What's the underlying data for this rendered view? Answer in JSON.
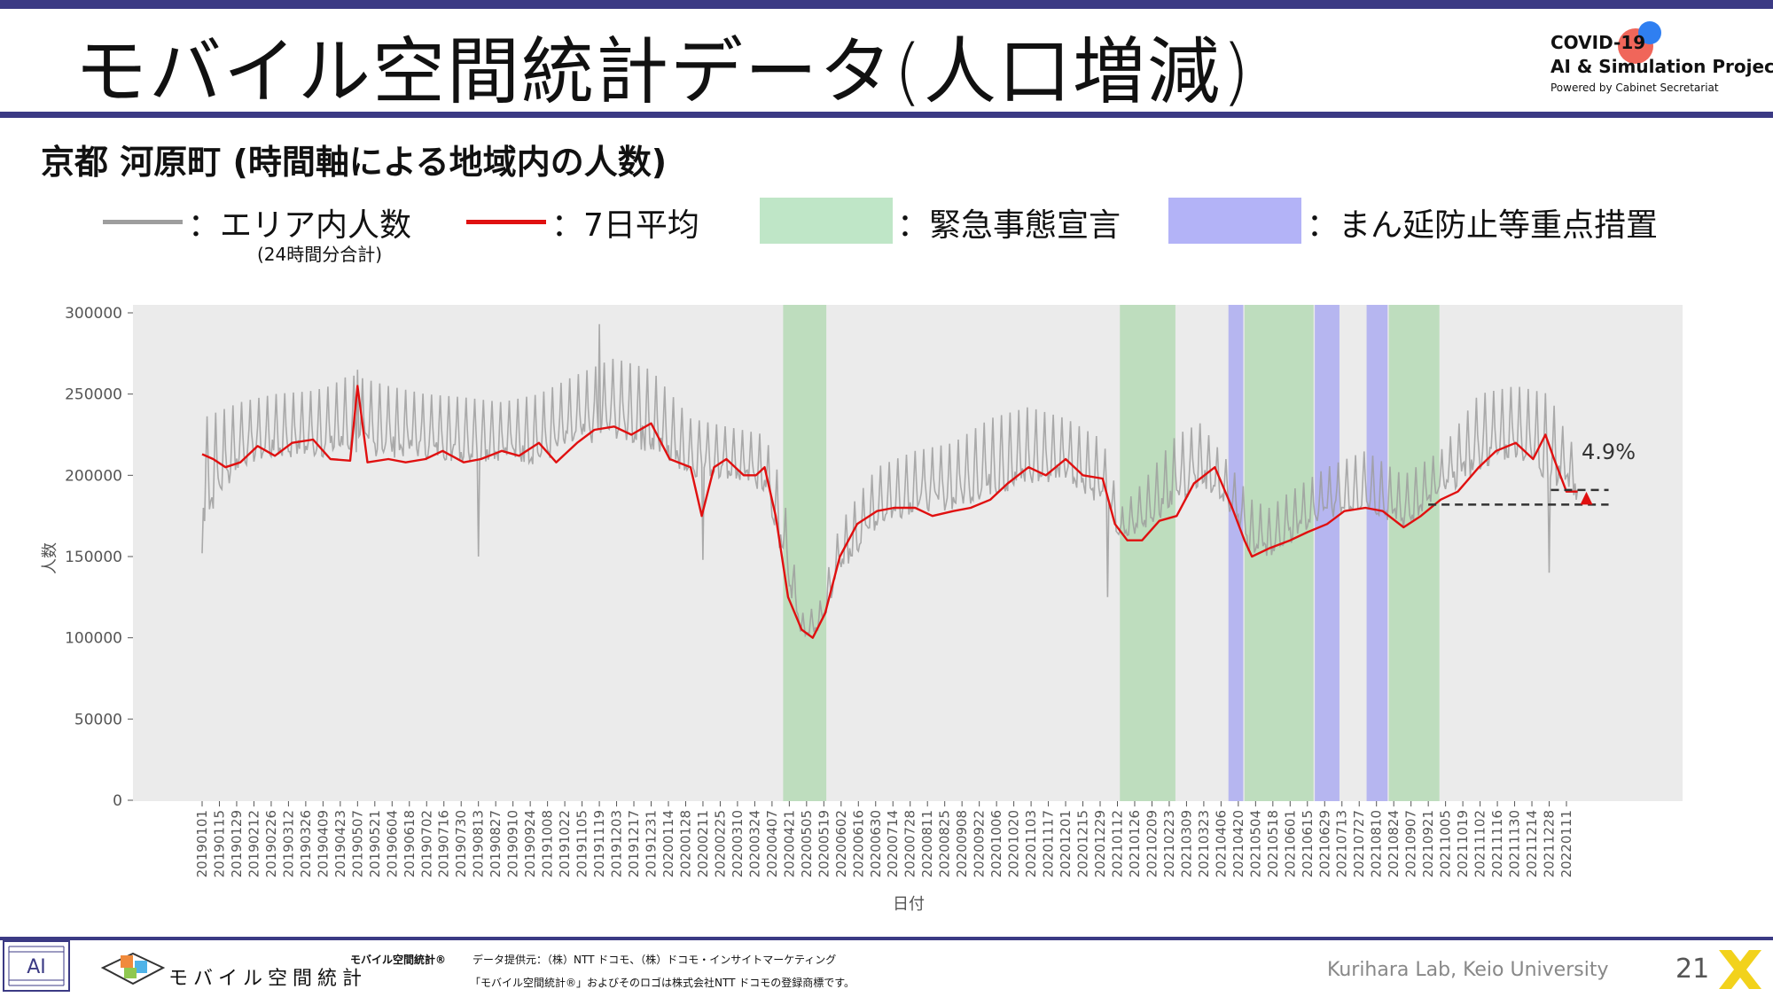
{
  "header": {
    "title": "モバイル空間統計データ(人口増減)",
    "logo_line1": "COVID-19",
    "logo_line2": "AI & Simulation Project",
    "logo_line3": "Powered by Cabinet Secretariat"
  },
  "subtitle": "京都 河原町 (時間軸による地域内の人数)",
  "legend": {
    "area_label": "：エリア内人数",
    "area_sub": "(24時間分合計)",
    "avg_label": "：7日平均",
    "emergency_label": "：緊急事態宣言",
    "priority_label": "：まん延防止等重点措置"
  },
  "colors": {
    "raw_line": "#9e9e9e",
    "avg_line": "#e01010",
    "emergency": "#b9dcb9",
    "priority": "#b3b3f0",
    "plot_bg": "#ebebeb",
    "brand": "#3b3a84"
  },
  "chart_data": {
    "type": "line",
    "title": "",
    "xlabel": "日付",
    "ylabel": "人数",
    "ylim": [
      0,
      300000
    ],
    "yticks": [
      "0",
      "50000",
      "100000",
      "150000",
      "200000",
      "250000",
      "300000"
    ],
    "grid": false,
    "xticks": [
      "20190101",
      "20190115",
      "20190129",
      "20190212",
      "20190226",
      "20190312",
      "20190326",
      "20190409",
      "20190423",
      "20190507",
      "20190521",
      "20190604",
      "20190618",
      "20190702",
      "20190716",
      "20190730",
      "20190813",
      "20190827",
      "20190910",
      "20190924",
      "20191008",
      "20191022",
      "20191105",
      "20191119",
      "20191203",
      "20191217",
      "20191231",
      "20200114",
      "20200128",
      "20200211",
      "20200225",
      "20200310",
      "20200324",
      "20200407",
      "20200421",
      "20200505",
      "20200519",
      "20200602",
      "20200616",
      "20200630",
      "20200714",
      "20200728",
      "20200811",
      "20200825",
      "20200908",
      "20200922",
      "20201006",
      "20201020",
      "20201103",
      "20201117",
      "20201201",
      "20201215",
      "20201229",
      "20210112",
      "20210126",
      "20210209",
      "20210223",
      "20210309",
      "20210323",
      "20210406",
      "20210420",
      "20210504",
      "20210518",
      "20210601",
      "20210615",
      "20210629",
      "20210713",
      "20210727",
      "20210810",
      "20210824",
      "20210907",
      "20210921",
      "20211005",
      "20211019",
      "20211102",
      "20211116",
      "20211130",
      "20211214",
      "20211228",
      "20220111"
    ],
    "emergency_periods": [
      [
        "20200416",
        "20200521"
      ],
      [
        "20210114",
        "20210228"
      ],
      [
        "20210425",
        "20210620"
      ],
      [
        "20210820",
        "20210930"
      ]
    ],
    "priority_periods": [
      [
        "20210412",
        "20210424"
      ],
      [
        "20210621",
        "20210711"
      ],
      [
        "20210802",
        "20210819"
      ]
    ],
    "series": [
      {
        "name": "エリア内人数",
        "style": "raw",
        "x": [
          "20190101",
          "20190201",
          "20190301",
          "20190401",
          "20190415",
          "20190501",
          "20190601",
          "20190701",
          "20190801",
          "20190901",
          "20191001",
          "20191101",
          "20191201",
          "20191231",
          "20200201",
          "20200301",
          "20200401",
          "20200415",
          "20200501",
          "20200515",
          "20200601",
          "20200701",
          "20200801",
          "20200901",
          "20201001",
          "20201101",
          "20201201",
          "20201231",
          "20210115",
          "20210201",
          "20210301",
          "20210320",
          "20210410",
          "20210501",
          "20210515",
          "20210601",
          "20210701",
          "20210801",
          "20210901",
          "20211001",
          "20211101",
          "20211201",
          "20211228",
          "20220111",
          "20220120"
        ],
        "min": [
          150000,
          195000,
          200000,
          200000,
          200000,
          200000,
          200000,
          200000,
          198000,
          200000,
          195000,
          205000,
          210000,
          200000,
          190000,
          190000,
          180000,
          135000,
          95000,
          98000,
          130000,
          158000,
          168000,
          168000,
          175000,
          178000,
          188000,
          170000,
          152000,
          158000,
          170000,
          185000,
          175000,
          140000,
          140000,
          150000,
          165000,
          170000,
          158000,
          178000,
          190000,
          200000,
          180000,
          185000,
          175000
        ],
        "max": [
          235000,
          245000,
          250000,
          252000,
          255000,
          262000,
          255000,
          250000,
          248000,
          245000,
          250000,
          262000,
          272000,
          265000,
          235000,
          230000,
          225000,
          195000,
          115000,
          120000,
          170000,
          205000,
          215000,
          220000,
          235000,
          242000,
          235000,
          222000,
          180000,
          195000,
          225000,
          232000,
          210000,
          185000,
          180000,
          190000,
          205000,
          215000,
          200000,
          215000,
          250000,
          255000,
          250000,
          225000,
          215000
        ],
        "spikes": [
          [
            "20190101",
            152000
          ],
          [
            "20190507",
            265000
          ],
          [
            "20190813",
            150000
          ],
          [
            "20191119",
            293000
          ],
          [
            "20200211",
            148000
          ],
          [
            "20210104",
            125000
          ],
          [
            "20211228",
            140000
          ],
          [
            "20210920",
            185000
          ]
        ]
      },
      {
        "name": "7日平均",
        "style": "avg",
        "x": [
          "20190101",
          "20190110",
          "20190120",
          "20190201",
          "20190215",
          "20190301",
          "20190315",
          "20190401",
          "20190415",
          "20190501",
          "20190507",
          "20190515",
          "20190601",
          "20190615",
          "20190701",
          "20190715",
          "20190801",
          "20190815",
          "20190901",
          "20190915",
          "20191001",
          "20191015",
          "20191101",
          "20191115",
          "20191201",
          "20191215",
          "20191231",
          "20200115",
          "20200201",
          "20200210",
          "20200220",
          "20200301",
          "20200315",
          "20200325",
          "20200401",
          "20200410",
          "20200420",
          "20200501",
          "20200510",
          "20200520",
          "20200601",
          "20200615",
          "20200701",
          "20200715",
          "20200801",
          "20200815",
          "20200901",
          "20200915",
          "20201001",
          "20201015",
          "20201101",
          "20201115",
          "20201201",
          "20201215",
          "20201231",
          "20210110",
          "20210120",
          "20210201",
          "20210215",
          "20210301",
          "20210315",
          "20210401",
          "20210415",
          "20210425",
          "20210501",
          "20210515",
          "20210601",
          "20210615",
          "20210701",
          "20210715",
          "20210801",
          "20210815",
          "20210901",
          "20210915",
          "20211001",
          "20211015",
          "20211101",
          "20211115",
          "20211201",
          "20211215",
          "20211225",
          "20220101",
          "20220111",
          "20220120"
        ],
        "values": [
          213000,
          210000,
          205000,
          208000,
          218000,
          212000,
          220000,
          222000,
          210000,
          209000,
          255000,
          208000,
          210000,
          208000,
          210000,
          215000,
          208000,
          210000,
          215000,
          212000,
          220000,
          208000,
          220000,
          228000,
          230000,
          225000,
          232000,
          210000,
          205000,
          175000,
          205000,
          210000,
          200000,
          200000,
          205000,
          175000,
          125000,
          105000,
          100000,
          115000,
          150000,
          170000,
          178000,
          180000,
          180000,
          175000,
          178000,
          180000,
          185000,
          195000,
          205000,
          200000,
          210000,
          200000,
          198000,
          170000,
          160000,
          160000,
          172000,
          175000,
          195000,
          205000,
          180000,
          160000,
          150000,
          155000,
          160000,
          165000,
          170000,
          178000,
          180000,
          178000,
          168000,
          175000,
          185000,
          190000,
          205000,
          215000,
          220000,
          210000,
          225000,
          210000,
          190000,
          190000
        ]
      }
    ],
    "annotation": {
      "label": "4.9%",
      "from_value": 182000,
      "to_value": 191000,
      "start_date": "20210921",
      "end_date": "20220120"
    }
  },
  "footer": {
    "brand_name": "モバイル空間統計",
    "registered": "モバイル空間統計®",
    "provider": "データ提供元：（株）NTT ドコモ、（株）ドコモ・インサイトマーケティング",
    "trademark": "「モバイル空間統計®」およびそのロゴは株式会社NTT ドコモの登録商標です。",
    "lab": "Kurihara Lab, Keio University",
    "page": "21"
  }
}
